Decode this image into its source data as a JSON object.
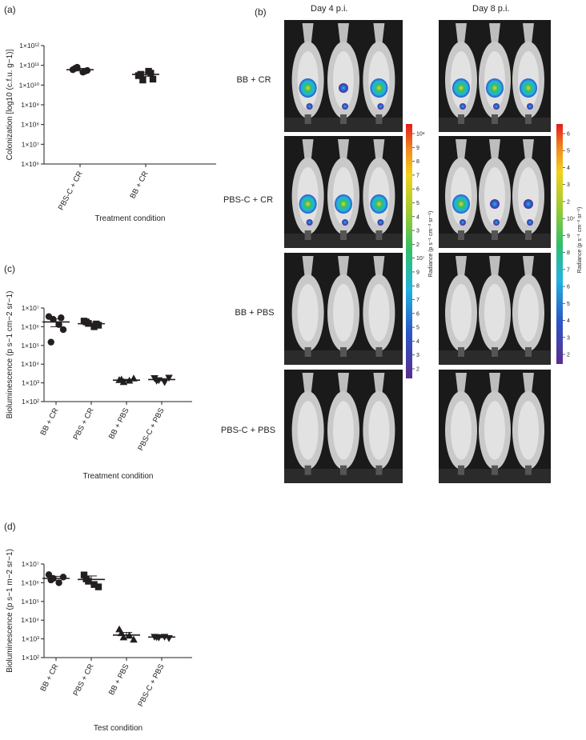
{
  "chart_data": [
    {
      "panel": "(a)",
      "type": "scatter",
      "ylabel": "Colonization [log10 (c.f.u. g−1)]",
      "xlabel": "Treatment condition",
      "yscale": "log",
      "ylim": [
        1000000,
        1000000000000
      ],
      "ytick_labels": [
        "1×10⁶",
        "1×10⁷",
        "1×10⁸",
        "1×10⁹",
        "1×10¹⁰",
        "1×10¹¹",
        "1×10¹²"
      ],
      "categories": [
        "PBS-C + CR",
        "BB + CR"
      ],
      "markers": [
        "circle",
        "square"
      ],
      "points": [
        [
          60000000000,
          80000000000,
          45000000000,
          55000000000,
          70000000000,
          50000000000
        ],
        [
          30000000000,
          18000000000,
          50000000000,
          20000000000,
          35000000000,
          40000000000
        ]
      ],
      "mean": [
        60000000000,
        35000000000
      ],
      "sem_low": [
        52000000000,
        28000000000
      ],
      "sem_high": [
        70000000000,
        45000000000
      ]
    },
    {
      "panel": "(c)",
      "type": "scatter",
      "ylabel": "Bioluminescence (p s−1 cm−2 sr−1)",
      "xlabel": "Treatment condition",
      "yscale": "log",
      "ylim": [
        100,
        10000000
      ],
      "ytick_labels": [
        "1×10²",
        "1×10³",
        "1×10⁴",
        "1×10⁵",
        "1×10⁶",
        "1×10⁷"
      ],
      "categories": [
        "BB + CR",
        "PBS + CR",
        "BB + PBS",
        "PBS-C + PBS"
      ],
      "markers": [
        "circle",
        "square",
        "triangle-up",
        "triangle-down"
      ],
      "points": [
        [
          3500000,
          2500000,
          1300000,
          700000,
          150000,
          3000000
        ],
        [
          2000000,
          1500000,
          1000000,
          1200000,
          1800000,
          1400000
        ],
        [
          1400,
          1100,
          1300,
          1700,
          1500
        ],
        [
          1800,
          1400,
          1100,
          1900,
          1300
        ]
      ],
      "mean": [
        1800000,
        1450000,
        1400,
        1500
      ],
      "sem_low": [
        1000000,
        1200000,
        1250,
        1300
      ],
      "sem_high": [
        2600000,
        1700000,
        1550,
        1700
      ]
    },
    {
      "panel": "(d)",
      "type": "scatter",
      "ylabel": "Bioluminescence (p s−1 m−2 sr−1)",
      "xlabel": "Test condition",
      "yscale": "log",
      "ylim": [
        100,
        10000000
      ],
      "ytick_labels": [
        "1×10²",
        "1×10³",
        "1×10⁴",
        "1×10⁵",
        "1×10⁶",
        "1×10⁷"
      ],
      "categories": [
        "BB + CR",
        "PBS + CR",
        "BB + PBS",
        "PBS-C + PBS"
      ],
      "markers": [
        "circle",
        "square",
        "triangle-up",
        "triangle-down"
      ],
      "points": [
        [
          2700000,
          1700000,
          1000000,
          2000000,
          1400000
        ],
        [
          2600000,
          1200000,
          800000,
          600000,
          1600000
        ],
        [
          3200,
          1200,
          1500,
          900,
          2000
        ],
        [
          1300,
          1200,
          1300,
          1100,
          1250
        ]
      ],
      "mean": [
        1700000,
        1500000,
        1600,
        1250
      ],
      "sem_low": [
        1300000,
        1000000,
        1100,
        1150
      ],
      "sem_high": [
        2200000,
        2300000,
        2200,
        1350
      ]
    }
  ],
  "panel_b": {
    "label": "(b)",
    "columns": [
      "Day  4  p.i.",
      "Day  8  p.i."
    ],
    "rows": [
      "BB + CR",
      "PBS-C + CR",
      "BB + PBS",
      "PBS-C + PBS"
    ],
    "colorbar_left": {
      "title": "Radiance (p s⁻¹ cm⁻² sr⁻¹)",
      "ticks": [
        "10⁸",
        "9",
        "8",
        "7",
        "6",
        "5",
        "4",
        "3",
        "2",
        "10⁷",
        "9",
        "8",
        "7",
        "6",
        "5",
        "4",
        "3",
        "2"
      ]
    },
    "colorbar_right": {
      "title": "Radiance (p s⁻¹ cm⁻² sr⁻¹)",
      "ticks": [
        "6",
        "5",
        "4",
        "3",
        "2",
        "10⁷",
        "9",
        "8",
        "7",
        "6",
        "5",
        "4",
        "3",
        "2"
      ]
    }
  }
}
